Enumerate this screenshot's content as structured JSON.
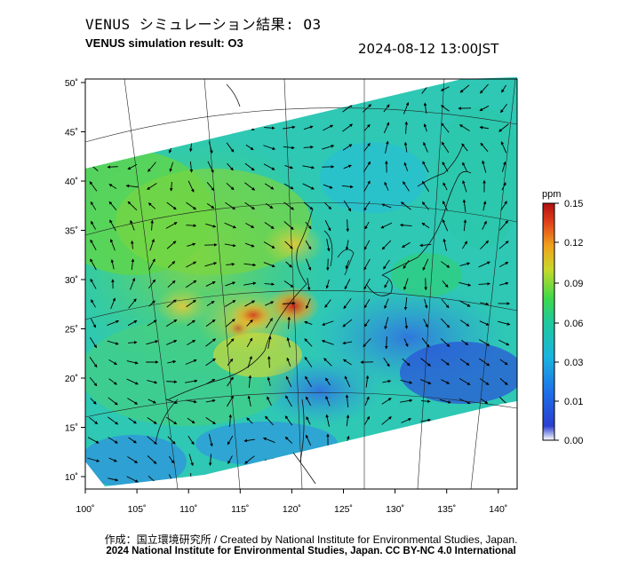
{
  "header": {
    "title_ja": "VENUS シミュレーション結果: O3",
    "title_en": "VENUS simulation result: O3",
    "timestamp": "2024-08-12 13:00JST"
  },
  "map": {
    "lon_ticks": [
      "100˚",
      "105˚",
      "110˚",
      "115˚",
      "120˚",
      "125˚",
      "130˚",
      "135˚",
      "140˚"
    ],
    "lat_ticks": [
      "50˚",
      "45˚",
      "40˚",
      "35˚",
      "30˚",
      "25˚",
      "20˚",
      "15˚",
      "10˚"
    ]
  },
  "colorbar": {
    "unit": "ppm",
    "tick_labels": [
      "0.15",
      "0.12",
      "0.09",
      "0.06",
      "0.03",
      "0.01",
      "0.00"
    ],
    "colors": [
      "#ffffff",
      "#1f3fd6",
      "#1aa0e6",
      "#20c9b8",
      "#3fd94a",
      "#c8d82a",
      "#f0a21c",
      "#e0401a",
      "#b01010"
    ]
  },
  "footer": {
    "credit_ja": "作成：国立環境研究所 / Created by National Institute for Environmental Studies, Japan.",
    "license": "2024 National Institute for Environmental Studies, Japan. CC BY-NC 4.0 International"
  }
}
